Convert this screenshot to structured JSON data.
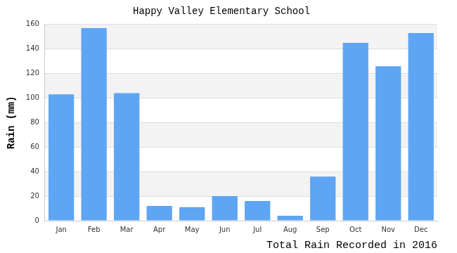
{
  "chart_data": {
    "type": "bar",
    "title": "Happy Valley Elementary School",
    "ylabel": "Rain (mm)",
    "xlabel": "Total Rain Recorded in 2016",
    "categories": [
      "Jan",
      "Feb",
      "Mar",
      "Apr",
      "May",
      "Jun",
      "Jul",
      "Aug",
      "Sep",
      "Oct",
      "Nov",
      "Dec"
    ],
    "values": [
      103,
      157,
      104,
      12,
      11,
      20,
      16,
      4,
      36,
      145,
      126,
      153
    ],
    "color": "#5ea5f3",
    "ylim": [
      0,
      160
    ],
    "yticks": [
      0,
      20,
      40,
      60,
      80,
      100,
      120,
      140,
      160
    ],
    "grid": true
  }
}
